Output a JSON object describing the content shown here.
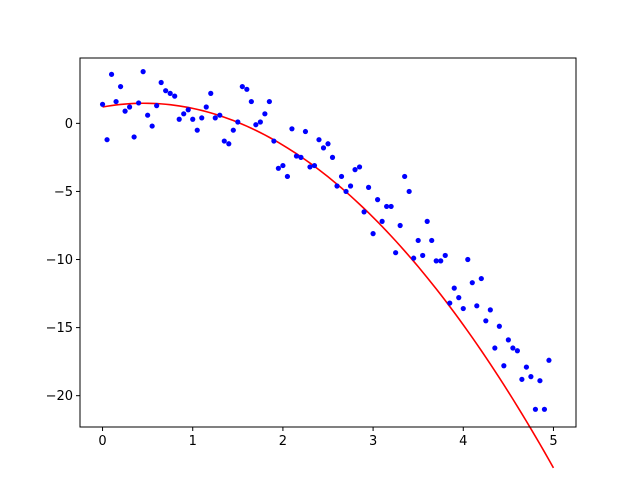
{
  "chart_data": {
    "type": "scatter",
    "title": "",
    "xlabel": "",
    "ylabel": "",
    "xlim": [
      -0.25,
      5.25
    ],
    "ylim": [
      -22.3,
      4.8
    ],
    "grid": false,
    "x_ticks": [
      0,
      1,
      2,
      3,
      4,
      5
    ],
    "x_tick_labels": [
      "0",
      "1",
      "2",
      "3",
      "4",
      "5"
    ],
    "y_ticks": [
      0,
      -5,
      -10,
      -15,
      -20
    ],
    "y_tick_labels": [
      "0",
      "−5",
      "−10",
      "−15",
      "−20"
    ],
    "series": [
      {
        "kind": "scatter",
        "color": "#0000ff",
        "points": [
          [
            0.0,
            1.4
          ],
          [
            0.05,
            -1.2
          ],
          [
            0.1,
            3.6
          ],
          [
            0.15,
            1.6
          ],
          [
            0.2,
            2.7
          ],
          [
            0.25,
            0.9
          ],
          [
            0.3,
            1.2
          ],
          [
            0.35,
            -1.0
          ],
          [
            0.4,
            1.5
          ],
          [
            0.45,
            3.8
          ],
          [
            0.5,
            0.6
          ],
          [
            0.55,
            -0.2
          ],
          [
            0.6,
            1.3
          ],
          [
            0.65,
            3.0
          ],
          [
            0.7,
            2.4
          ],
          [
            0.75,
            2.2
          ],
          [
            0.8,
            2.0
          ],
          [
            0.85,
            0.3
          ],
          [
            0.9,
            0.7
          ],
          [
            0.95,
            1.0
          ],
          [
            1.0,
            0.3
          ],
          [
            1.05,
            -0.5
          ],
          [
            1.1,
            0.4
          ],
          [
            1.15,
            1.2
          ],
          [
            1.2,
            2.2
          ],
          [
            1.25,
            0.4
          ],
          [
            1.3,
            0.6
          ],
          [
            1.35,
            -1.3
          ],
          [
            1.4,
            -1.5
          ],
          [
            1.45,
            -0.5
          ],
          [
            1.5,
            0.1
          ],
          [
            1.55,
            2.7
          ],
          [
            1.6,
            2.5
          ],
          [
            1.65,
            1.6
          ],
          [
            1.7,
            -0.1
          ],
          [
            1.75,
            0.1
          ],
          [
            1.8,
            0.7
          ],
          [
            1.85,
            1.6
          ],
          [
            1.9,
            -1.3
          ],
          [
            1.95,
            -3.3
          ],
          [
            2.0,
            -3.1
          ],
          [
            2.05,
            -3.9
          ],
          [
            2.1,
            -0.4
          ],
          [
            2.15,
            -2.4
          ],
          [
            2.2,
            -2.5
          ],
          [
            2.25,
            -0.6
          ],
          [
            2.3,
            -3.2
          ],
          [
            2.35,
            -3.1
          ],
          [
            2.4,
            -1.2
          ],
          [
            2.45,
            -1.8
          ],
          [
            2.5,
            -1.5
          ],
          [
            2.55,
            -2.5
          ],
          [
            2.6,
            -4.6
          ],
          [
            2.65,
            -3.9
          ],
          [
            2.7,
            -5.0
          ],
          [
            2.75,
            -4.6
          ],
          [
            2.8,
            -3.4
          ],
          [
            2.85,
            -3.2
          ],
          [
            2.9,
            -6.5
          ],
          [
            2.95,
            -4.7
          ],
          [
            3.0,
            -8.1
          ],
          [
            3.05,
            -5.6
          ],
          [
            3.1,
            -7.2
          ],
          [
            3.15,
            -6.1
          ],
          [
            3.2,
            -6.1
          ],
          [
            3.25,
            -9.5
          ],
          [
            3.3,
            -7.5
          ],
          [
            3.35,
            -3.9
          ],
          [
            3.4,
            -5.0
          ],
          [
            3.45,
            -9.9
          ],
          [
            3.5,
            -8.6
          ],
          [
            3.55,
            -9.7
          ],
          [
            3.6,
            -7.2
          ],
          [
            3.65,
            -8.6
          ],
          [
            3.7,
            -10.1
          ],
          [
            3.75,
            -10.1
          ],
          [
            3.8,
            -9.7
          ],
          [
            3.85,
            -13.2
          ],
          [
            3.9,
            -12.1
          ],
          [
            3.95,
            -12.8
          ],
          [
            4.0,
            -13.6
          ],
          [
            4.05,
            -10.0
          ],
          [
            4.1,
            -11.7
          ],
          [
            4.15,
            -13.4
          ],
          [
            4.2,
            -11.4
          ],
          [
            4.25,
            -14.5
          ],
          [
            4.3,
            -13.7
          ],
          [
            4.35,
            -16.5
          ],
          [
            4.4,
            -14.9
          ],
          [
            4.45,
            -17.8
          ],
          [
            4.5,
            -15.9
          ],
          [
            4.55,
            -16.5
          ],
          [
            4.6,
            -16.7
          ],
          [
            4.65,
            -18.8
          ],
          [
            4.7,
            -17.9
          ],
          [
            4.75,
            -18.6
          ],
          [
            4.8,
            -21.0
          ],
          [
            4.85,
            -18.9
          ],
          [
            4.9,
            -21.0
          ],
          [
            4.95,
            -17.4
          ]
        ]
      },
      {
        "kind": "line",
        "color": "#ff0000",
        "fit": "quadratic",
        "coefficients": {
          "a": -1.3,
          "b": 1.2,
          "c": 1.2
        },
        "x_range": [
          0,
          5
        ]
      }
    ]
  }
}
